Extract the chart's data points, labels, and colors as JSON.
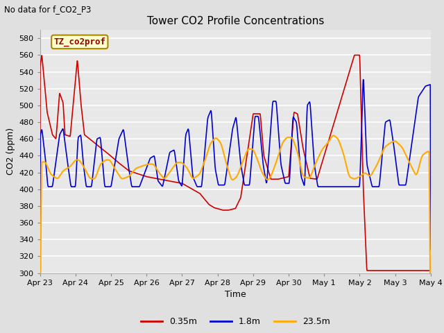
{
  "title": "Tower CO2 Profile Concentrations",
  "subtitle": "No data for f_CO2_P3",
  "xlabel": "Time",
  "ylabel": "CO2 (ppm)",
  "ylim": [
    300,
    590
  ],
  "yticks": [
    300,
    320,
    340,
    360,
    380,
    400,
    420,
    440,
    460,
    480,
    500,
    520,
    540,
    560,
    580
  ],
  "bg_color": "#e0e0e0",
  "plot_bg_color": "#e8e8e8",
  "legend_label": "TZ_co2prof",
  "legend_bg": "#ffffcc",
  "legend_border": "#aa8800",
  "series_red_label": "0.35m",
  "series_red_color": "#cc0000",
  "series_blue_label": "1.8m",
  "series_blue_color": "#0000cc",
  "series_orange_label": "23.5m",
  "series_orange_color": "#ffaa00",
  "linewidth": 1.2,
  "x_labels": [
    "Apr 23",
    "Apr 24",
    "Apr 25",
    "Apr 26",
    "Apr 27",
    "Apr 28",
    "Apr 29",
    "Apr 30",
    "May 1",
    "May 2",
    "May 3",
    "May 4"
  ],
  "x_tick_pos": [
    0,
    1,
    2,
    3,
    4,
    5,
    6,
    7,
    8,
    9,
    10,
    11
  ]
}
